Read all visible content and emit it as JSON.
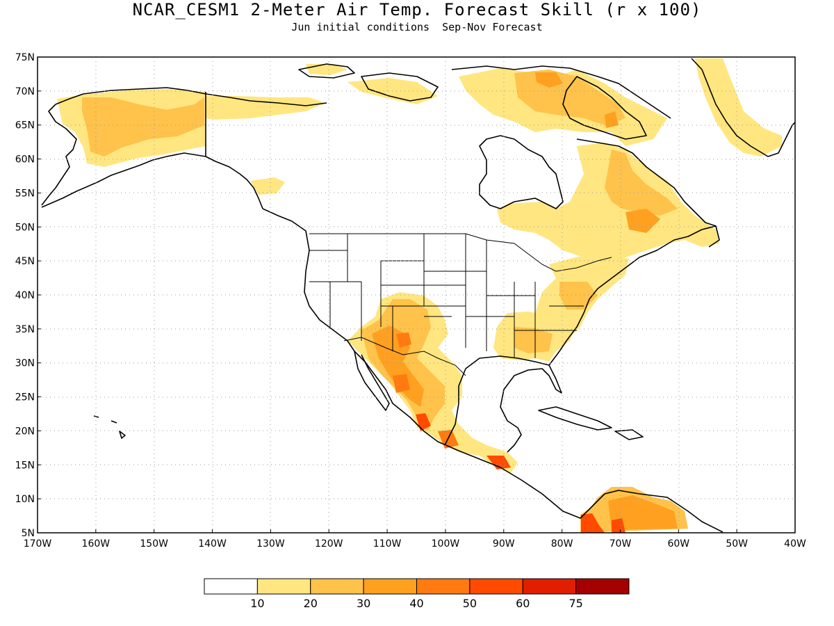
{
  "header": {
    "title": "NCAR_CESM1 2-Meter Air Temp. Forecast Skill (r x 100)",
    "subtitle": "Jun initial conditions  Sep-Nov Forecast"
  },
  "map": {
    "projection": "equirectangular",
    "lon_range": [
      -170,
      -40
    ],
    "lat_range": [
      5,
      75
    ],
    "lat_ticks": [
      "5N",
      "10N",
      "15N",
      "20N",
      "25N",
      "30N",
      "35N",
      "40N",
      "45N",
      "50N",
      "55N",
      "60N",
      "65N",
      "70N",
      "75N"
    ],
    "lon_ticks": [
      "170W",
      "160W",
      "150W",
      "140W",
      "130W",
      "120W",
      "110W",
      "100W",
      "90W",
      "80W",
      "70W",
      "60W",
      "50W",
      "40W"
    ],
    "gridlines": "dotted"
  },
  "legend": {
    "labels": [
      "10",
      "20",
      "30",
      "40",
      "50",
      "60",
      "75"
    ],
    "colors": [
      "#ffffff",
      "#ffe680",
      "#ffc24a",
      "#ffa020",
      "#ff7a10",
      "#ff4a00",
      "#e01e00",
      "#a50000"
    ]
  }
}
